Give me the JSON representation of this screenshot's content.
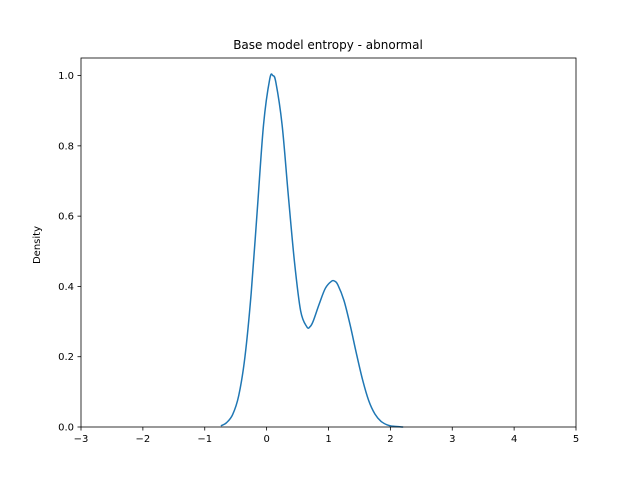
{
  "chart_data": {
    "type": "line",
    "title": "Base model entropy - abnormal",
    "xlabel": "",
    "ylabel": "Density",
    "xlim": [
      -3,
      5
    ],
    "ylim": [
      0,
      1.05
    ],
    "x_ticks": [
      -3,
      -2,
      -1,
      0,
      1,
      2,
      3,
      4,
      5
    ],
    "x_tick_labels": [
      "−3",
      "−2",
      "−1",
      "0",
      "1",
      "2",
      "3",
      "4",
      "5"
    ],
    "y_ticks": [
      0.0,
      0.2,
      0.4,
      0.6,
      0.8,
      1.0
    ],
    "y_tick_labels": [
      "0.0",
      "0.2",
      "0.4",
      "0.6",
      "0.8",
      "1.0"
    ],
    "grid": false,
    "line_color": "#1f77b4",
    "series": [
      {
        "x": [
          -0.73,
          -0.65,
          -0.55,
          -0.45,
          -0.35,
          -0.25,
          -0.15,
          -0.05,
          0.05,
          0.1,
          0.15,
          0.25,
          0.35,
          0.45,
          0.55,
          0.65,
          0.7,
          0.75,
          0.85,
          0.95,
          1.05,
          1.1,
          1.15,
          1.25,
          1.35,
          1.45,
          1.55,
          1.65,
          1.75,
          1.85,
          1.95,
          2.05,
          2.2
        ],
        "y": [
          0.004,
          0.012,
          0.035,
          0.09,
          0.2,
          0.38,
          0.62,
          0.86,
          0.99,
          1.0,
          0.98,
          0.86,
          0.66,
          0.47,
          0.33,
          0.285,
          0.285,
          0.3,
          0.35,
          0.395,
          0.415,
          0.415,
          0.405,
          0.36,
          0.29,
          0.21,
          0.135,
          0.075,
          0.037,
          0.016,
          0.006,
          0.002,
          0.0
        ]
      }
    ]
  }
}
